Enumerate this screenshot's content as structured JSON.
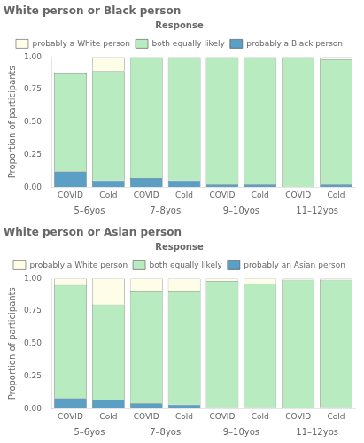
{
  "chart_data": [
    {
      "type": "bar",
      "title": "White person or Black person",
      "legend_title": "Response",
      "categories": [
        "COVID",
        "Cold",
        "COVID",
        "Cold",
        "COVID",
        "Cold",
        "COVID",
        "Cold"
      ],
      "category_groups": [
        "5–6yos",
        "7–8yos",
        "9–10yos",
        "11–12yos"
      ],
      "series": [
        {
          "name": "probably a Black person",
          "color": "#5B9FC4",
          "values": [
            0.12,
            0.05,
            0.07,
            0.05,
            0.02,
            0.02,
            0.0,
            0.02
          ]
        },
        {
          "name": "both equally likely",
          "color": "#B8EBC0",
          "values": [
            0.76,
            0.84,
            0.93,
            0.95,
            0.98,
            0.98,
            1.0,
            0.96
          ]
        },
        {
          "name": "probably a White person",
          "color": "#FDFDE8",
          "values": [
            0.0,
            0.11,
            0.0,
            0.0,
            0.0,
            0.0,
            0.0,
            0.02
          ]
        }
      ],
      "ylabel": "Proportion of participants",
      "ylim": [
        0,
        1.0
      ],
      "yticks": [
        {
          "value": 0,
          "label": "0.00"
        },
        {
          "value": 0.25,
          "label": "0.25"
        },
        {
          "value": 0.5,
          "label": "0.50"
        },
        {
          "value": 0.75,
          "label": "0.75"
        },
        {
          "value": 1.0,
          "label": "1.00"
        }
      ],
      "stacked": true,
      "grid": false,
      "legend": "top"
    },
    {
      "type": "bar",
      "title": "White person or Asian person",
      "legend_title": "Response",
      "categories": [
        "COVID",
        "Cold",
        "COVID",
        "Cold",
        "COVID",
        "Cold",
        "COVID",
        "Cold"
      ],
      "category_groups": [
        "5–6yos",
        "7–8yos",
        "9–10yos",
        "11–12yos"
      ],
      "series": [
        {
          "name": "probably an Asian person",
          "color": "#5B9FC4",
          "values": [
            0.08,
            0.07,
            0.04,
            0.03,
            0.01,
            0.01,
            0.0,
            0.01
          ]
        },
        {
          "name": "both equally likely",
          "color": "#B8EBC0",
          "values": [
            0.87,
            0.73,
            0.86,
            0.87,
            0.97,
            0.95,
            0.99,
            0.98
          ]
        },
        {
          "name": "probably a White person",
          "color": "#FDFDE8",
          "values": [
            0.05,
            0.2,
            0.1,
            0.1,
            0.02,
            0.04,
            0.01,
            0.01
          ]
        }
      ],
      "ylabel": "Proportion of participants",
      "ylim": [
        0,
        1.0
      ],
      "yticks": [
        {
          "value": 0,
          "label": "0.00"
        },
        {
          "value": 0.25,
          "label": "0.25"
        },
        {
          "value": 0.5,
          "label": "0.50"
        },
        {
          "value": 0.75,
          "label": "0.75"
        },
        {
          "value": 1.0,
          "label": "1.00"
        }
      ],
      "stacked": true,
      "grid": false,
      "legend": "top"
    }
  ]
}
